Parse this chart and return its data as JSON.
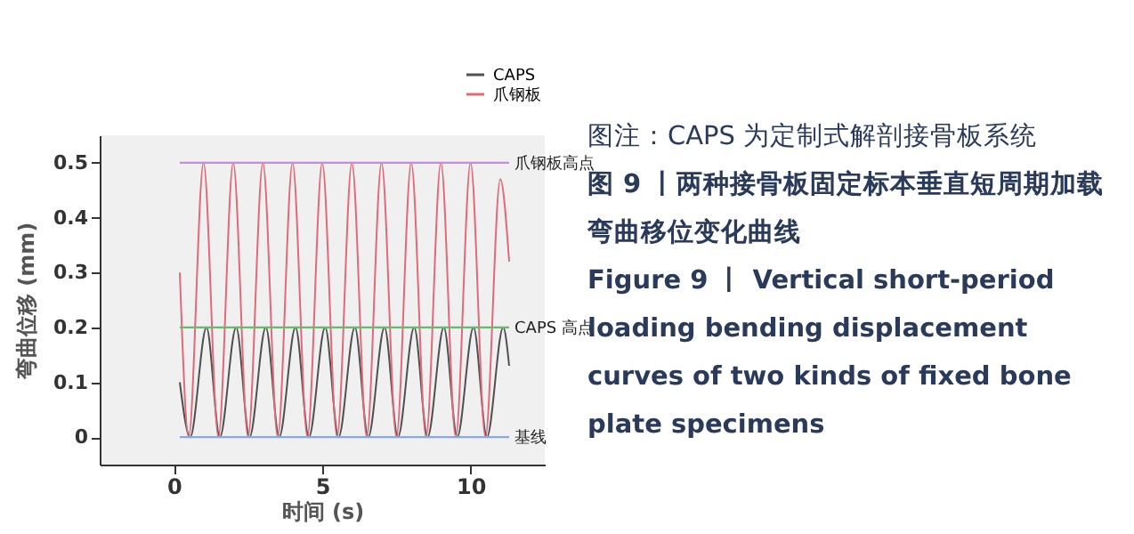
{
  "chart_data": {
    "type": "line",
    "xlabel": "时间 (s)",
    "ylabel": "弯曲位移 (mm)",
    "xlim": [
      -2.5,
      12.5
    ],
    "xticks": [
      0,
      5,
      10
    ],
    "ylim": [
      -0.05,
      0.55
    ],
    "yticks": [
      0,
      0.1,
      0.2,
      0.3,
      0.4,
      0.5
    ],
    "grid": false,
    "legend": "top right",
    "marker": "none",
    "line_style": "solid",
    "series": [
      {
        "name": "CAPS",
        "color": "#505050",
        "x": [
          0.2,
          0.55,
          1.1,
          1.55,
          2.1,
          2.55,
          3.1,
          3.55,
          4.1,
          4.55,
          5.1,
          5.55,
          6.1,
          6.55,
          7.1,
          7.55,
          8.1,
          8.55,
          9.1,
          9.55,
          10.1,
          10.55,
          11.1,
          11.3
        ],
        "values": [
          0.1,
          0,
          0.2,
          0,
          0.2,
          0,
          0.2,
          0,
          0.2,
          0,
          0.2,
          0,
          0.2,
          0,
          0.2,
          0,
          0.2,
          0,
          0.2,
          0,
          0.2,
          0,
          0.2,
          0.13
        ]
      },
      {
        "name": "爪钢板",
        "color": "#e06a78",
        "x": [
          0.2,
          0.5,
          1.0,
          1.5,
          2.0,
          2.5,
          3.0,
          3.5,
          4.0,
          4.5,
          5.0,
          5.5,
          6.0,
          6.5,
          7.0,
          7.5,
          8.0,
          8.5,
          9.0,
          9.5,
          10.0,
          10.5,
          11.0,
          11.3
        ],
        "values": [
          0.3,
          0,
          0.5,
          0,
          0.5,
          0,
          0.5,
          0,
          0.5,
          0,
          0.5,
          0,
          0.5,
          0,
          0.5,
          0,
          0.5,
          0,
          0.5,
          0,
          0.5,
          0,
          0.47,
          0.32
        ]
      }
    ],
    "ref_lines": [
      {
        "axis": "y",
        "value": 0.5,
        "label": "爪钢板高点",
        "color": "#c58be0"
      },
      {
        "axis": "y",
        "value": 0.2,
        "label": "CAPS 高点",
        "color": "#6db86d"
      },
      {
        "axis": "y",
        "value": 0,
        "label": "基线",
        "color": "#8aaad8"
      }
    ],
    "annotations": [
      "图注：CAPS 为定制式解剖接骨板系统",
      "图 9 丨两种接骨板固定标本垂直短周期加载弯曲移位变化曲线",
      "Figure 9 丨 Vertical short-period loading bending displacement curves of two kinds of fixed bone plate specimens"
    ]
  }
}
